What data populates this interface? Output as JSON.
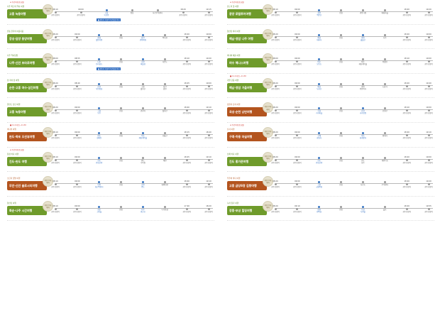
{
  "page": {
    "flag_icon": "pin-icon",
    "accent": "#6f9b2b",
    "accent_alt": "#b3541e",
    "highlight": "#3b78c4"
  },
  "left": [
    {
      "flag": "★ 주간여행(토요일)",
      "subtitle": "나주 최고의 역사 여행",
      "title": "고흥 녹동여행",
      "badge": "여행 주제\n테마",
      "badge_red": false,
      "note": "■ 팸투어 여행객 주간일정 안내",
      "stops": [
        {
          "t": "08:10",
          "n": "광주송정역"
        },
        {
          "t": "09:00",
          "n": "광주송정역"
        },
        {
          "t": "",
          "n": "고흥\n녹동항",
          "hl": true
        },
        {
          "t": "",
          "n": "점심"
        },
        {
          "t": "",
          "n": "나로우주센터"
        },
        {
          "t": "18:20",
          "n": "광주송정역"
        },
        {
          "t": "19:15",
          "n": "광주송정역"
        }
      ]
    },
    {
      "flag": "",
      "subtitle": "전통 한옥의 아름다움",
      "title": "장성·담양 동양여행",
      "badge": "여행 주제\n테마",
      "badge_red": false,
      "note": "",
      "stops": [
        {
          "t": "08:20",
          "n": "광주송정역"
        },
        {
          "t": "09:00",
          "n": "광주송정역"
        },
        {
          "t": "",
          "n": "장성\n필암서원",
          "hl": true
        },
        {
          "t": "",
          "n": "점심"
        },
        {
          "t": "",
          "n": "담양\n관방제림",
          "hl": true
        },
        {
          "t": "",
          "n": "죽녹원"
        },
        {
          "t": "18:20",
          "n": "광주송정역"
        },
        {
          "t": "19:00",
          "n": "광주송정역"
        }
      ]
    },
    {
      "flag": "",
      "subtitle": "나주 역사탐방",
      "title": "나주·신안 보라로여행",
      "badge": "여행 주제\n테마",
      "badge_red": false,
      "note": "■ 팸투어 여행객 주간일정 안내",
      "stops": [
        {
          "t": "08:00",
          "n": "광주송정역"
        },
        {
          "t": "08:55",
          "n": "광주송정역"
        },
        {
          "t": "",
          "n": "나주\n전라남도",
          "hl": true
        },
        {
          "t": "",
          "n": "점심"
        },
        {
          "t": "",
          "n": "신안\n퍼플섬",
          "hl": true
        },
        {
          "t": "",
          "n": "자은도"
        },
        {
          "t": "18:10",
          "n": "광주송정역"
        },
        {
          "t": "19:20",
          "n": "광주송정역"
        }
      ]
    },
    {
      "flag": "",
      "subtitle": "섬 속의 섬 여행",
      "title": "순천·고흥 여수·섬진여행",
      "badge": "여행 주제\n테마",
      "badge_red": false,
      "note": "",
      "stops": [
        {
          "t": "08:20",
          "n": "광주송정역"
        },
        {
          "t": "08:40",
          "n": "광주송정역"
        },
        {
          "t": "",
          "n": "순천\n낙안읍성",
          "hl": true
        },
        {
          "t": "",
          "n": "점심"
        },
        {
          "t": "",
          "n": "고흥\n팔영산"
        },
        {
          "t": "",
          "n": "섬진\n강변"
        },
        {
          "t": "18:25",
          "n": "광주송정역"
        },
        {
          "t": "19:00",
          "n": "광주송정역"
        }
      ]
    },
    {
      "flag": "",
      "subtitle": "한반도 남단 여행",
      "title": "고흥 녹동여행",
      "badge": "여행 주제\n테마",
      "badge_red": false,
      "note": "",
      "stops": [
        {
          "t": "08:20",
          "n": "광주송정역"
        },
        {
          "t": "09:00",
          "n": "광주송정역"
        },
        {
          "t": "",
          "n": "고흥\n우주",
          "hl": true
        },
        {
          "t": "",
          "n": "점심"
        },
        {
          "t": "",
          "n": "관광지"
        },
        {
          "t": "",
          "n": "팔영산"
        },
        {
          "t": "18:40",
          "n": "광주송정역"
        },
        {
          "t": "19:10",
          "n": "광주송정역"
        }
      ]
    },
    {
      "flag": "■ 11.11(토)~11.30",
      "subtitle": "바다의 여행",
      "title": "완도·목포 오션뷰여행",
      "badge": "여행 주제\n테마",
      "badge_red": true,
      "note": "",
      "stops": [
        {
          "t": "08:10",
          "n": "광주송정역"
        },
        {
          "t": "09:00",
          "n": "광주송정역"
        },
        {
          "t": "",
          "n": "완도\n청해진",
          "hl": true
        },
        {
          "t": "",
          "n": "점심"
        },
        {
          "t": "",
          "n": "목포\n해상케이블",
          "hl": true
        },
        {
          "t": "",
          "n": "유달산"
        },
        {
          "t": "18:15",
          "n": "광주송정역"
        },
        {
          "t": "18:40",
          "n": "광주송정역"
        }
      ]
    },
    {
      "flag": "★ 주간여행(토요일)",
      "subtitle": "청정 바다 여행",
      "title": "진도·완도 여행",
      "badge": "여행 주제\n테마",
      "badge_red": false,
      "note": "",
      "stops": [
        {
          "t": "08:10",
          "n": "광주송정역"
        },
        {
          "t": "09:00",
          "n": "광주송정역"
        },
        {
          "t": "",
          "n": "진도\n운림산방",
          "hl": true
        },
        {
          "t": "",
          "n": "점심"
        },
        {
          "t": "",
          "n": "완도\n수목원"
        },
        {
          "t": "",
          "n": "해변"
        },
        {
          "t": "18:25",
          "n": "광주송정역"
        },
        {
          "t": "19:10",
          "n": "광주송정역"
        }
      ]
    },
    {
      "flag": "",
      "subtitle": "소금과 갯벌 여행",
      "title": "무안·신안 슬로시티여행",
      "badge": "여행 주제\n테마",
      "badge_red": true,
      "note": "",
      "stops": [
        {
          "t": "08:10",
          "n": "광주송정역"
        },
        {
          "t": "09:00",
          "n": "광주송정역"
        },
        {
          "t": "",
          "n": "무안\n회산백련지",
          "hl": true
        },
        {
          "t": "",
          "n": "점심"
        },
        {
          "t": "",
          "n": "신안\n증도",
          "hl": true
        },
        {
          "t": "",
          "n": "태평염전"
        },
        {
          "t": "18:40",
          "n": "광주송정역"
        },
        {
          "t": "19:10",
          "n": "광주송정역"
        }
      ]
    },
    {
      "flag": "",
      "subtitle": "영산강 여행",
      "title": "화순·나주 시간여행",
      "badge": "여행 주제\n테마",
      "badge_red": false,
      "note": "",
      "stops": [
        {
          "t": "08:10",
          "n": "광주송정역"
        },
        {
          "t": "09:00",
          "n": "광주송정역"
        },
        {
          "t": "",
          "n": "화순\n고인돌",
          "hl": true
        },
        {
          "t": "",
          "n": "점심"
        },
        {
          "t": "",
          "n": "나주\n영산포",
          "hl": true
        },
        {
          "t": "",
          "n": "나주읍성"
        },
        {
          "t": "17:40",
          "n": "광주송정역"
        },
        {
          "t": "18:20",
          "n": "광주송정역"
        }
      ]
    }
  ],
  "right": [
    {
      "flag": "★ 주간여행(토요일)",
      "subtitle": "남도의 맛 여행",
      "title": "광양 로컬투어여행",
      "badge": "여행 주제\n테마",
      "badge_red": false,
      "note": "",
      "stops": [
        {
          "t": "08:10",
          "n": "광주송정역"
        },
        {
          "t": "09:00",
          "n": "광주송정역"
        },
        {
          "t": "",
          "n": "광양\n백운산",
          "hl": true
        },
        {
          "t": "",
          "n": "점심"
        },
        {
          "t": "",
          "n": "광양시장"
        },
        {
          "t": "",
          "n": "매화마을"
        },
        {
          "t": "18:20",
          "n": "광주송정역"
        },
        {
          "t": "19:20",
          "n": "광주송정역"
        }
      ]
    },
    {
      "flag": "",
      "subtitle": "영산강 따라 여행",
      "title": "해남·영암 나주 여행",
      "badge": "여행 주제\n테마",
      "badge_red": false,
      "note": "",
      "stops": [
        {
          "t": "08:20",
          "n": "광주송정역"
        },
        {
          "t": "09:00",
          "n": "광주송정역"
        },
        {
          "t": "",
          "n": "해남\n대흥사",
          "hl": true
        },
        {
          "t": "",
          "n": "점심"
        },
        {
          "t": "",
          "n": "영암\n월출산",
          "hl": true
        },
        {
          "t": "",
          "n": "나주"
        },
        {
          "t": "18:20",
          "n": "광주송정역"
        },
        {
          "t": "19:00",
          "n": "광주송정역"
        }
      ]
    },
    {
      "flag": "",
      "subtitle": "바다와 예술 여행",
      "title": "여수 해나스여행",
      "badge": "여행 주제\n테마",
      "badge_red": false,
      "note": "",
      "stops": [
        {
          "t": "08:00",
          "n": "광주송정역"
        },
        {
          "t": "09:00",
          "n": "광주송정역"
        },
        {
          "t": "",
          "n": "여수\n오동도",
          "hl": true
        },
        {
          "t": "",
          "n": "점심"
        },
        {
          "t": "",
          "n": "여수\n해상케이블"
        },
        {
          "t": "",
          "n": "향일암"
        },
        {
          "t": "18:10",
          "n": "광주송정역"
        },
        {
          "t": "19:00",
          "n": "광주송정역"
        }
      ]
    },
    {
      "flag": "■ 11.11(토)~11.30",
      "subtitle": "가을 단풍 여행",
      "title": "해남·영암 가을여행",
      "badge": "여행 주제\n테마",
      "badge_red": false,
      "note": "",
      "stops": [
        {
          "t": "08:20",
          "n": "광주송정역"
        },
        {
          "t": "09:00",
          "n": "광주송정역"
        },
        {
          "t": "",
          "n": "해남\n두륜산",
          "hl": true
        },
        {
          "t": "",
          "n": "점심"
        },
        {
          "t": "",
          "n": "영암\n왕인박사"
        },
        {
          "t": "",
          "n": "도갑사"
        },
        {
          "t": "18:20",
          "n": "광주송정역"
        },
        {
          "t": "19:40",
          "n": "광주송정역"
        }
      ]
    },
    {
      "flag": "",
      "subtitle": "정원과 습지 여행",
      "title": "곡성·순천 낭만여행",
      "badge": "여행 주제\n테마",
      "badge_red": true,
      "note": "",
      "stops": [
        {
          "t": "08:20",
          "n": "광주송정역"
        },
        {
          "t": "09:00",
          "n": "광주송정역"
        },
        {
          "t": "",
          "n": "곡성\n기차마을",
          "hl": true
        },
        {
          "t": "",
          "n": "점심"
        },
        {
          "t": "",
          "n": "순천\n국가정원",
          "hl": true
        },
        {
          "t": "",
          "n": "순천만"
        },
        {
          "t": "18:10",
          "n": "광주송정역"
        },
        {
          "t": "19:00",
          "n": "광주송정역"
        }
      ]
    },
    {
      "flag": "★ 주간여행(토요일)",
      "subtitle": "산사 여행",
      "title": "구례·하동 마실여행",
      "badge": "여행 주제\n테마",
      "badge_red": true,
      "note": "",
      "stops": [
        {
          "t": "08:20",
          "n": "광주송정역"
        },
        {
          "t": "09:00",
          "n": "광주송정역"
        },
        {
          "t": "",
          "n": "구례\n화엄사",
          "hl": true
        },
        {
          "t": "",
          "n": "점심"
        },
        {
          "t": "",
          "n": "하동\n화개장터",
          "hl": true
        },
        {
          "t": "",
          "n": "쌍계사"
        },
        {
          "t": "18:20",
          "n": "광주송정역"
        },
        {
          "t": "19:10",
          "n": "광주송정역"
        }
      ]
    },
    {
      "flag": "",
      "subtitle": "남해 바다 여행",
      "title": "진도 홍가문여행",
      "badge": "여행 주제\n테마",
      "badge_red": false,
      "note": "",
      "stops": [
        {
          "t": "08:20",
          "n": "광주송정역"
        },
        {
          "t": "09:00",
          "n": "광주송정역"
        },
        {
          "t": "",
          "n": "진도\n운림산방",
          "hl": true
        },
        {
          "t": "",
          "n": "점심"
        },
        {
          "t": "",
          "n": "진도\n홍주"
        },
        {
          "t": "",
          "n": "세방낙조"
        },
        {
          "t": "18:20",
          "n": "광주송정역"
        },
        {
          "t": "19:00",
          "n": "광주송정역"
        }
      ]
    },
    {
      "flag": "",
      "subtitle": "우주와 바다 여행",
      "title": "고흥 금당8경 김향여행",
      "badge": "여행 주제\n테마",
      "badge_red": true,
      "note": "",
      "stops": [
        {
          "t": "08:20",
          "n": "광주송정역"
        },
        {
          "t": "09:00",
          "n": "광주송정역"
        },
        {
          "t": "",
          "n": "고흥\n금당8경",
          "hl": true
        },
        {
          "t": "",
          "n": "점심"
        },
        {
          "t": "",
          "n": "나로도"
        },
        {
          "t": "",
          "n": "우주센터"
        },
        {
          "t": "18:20",
          "n": "광주송정역"
        },
        {
          "t": "19:20",
          "n": "광주송정역"
        }
      ]
    },
    {
      "flag": "",
      "subtitle": "녹차 향기 여행",
      "title": "장흥·보성 힐링여행",
      "badge": "여행 주제\n테마",
      "badge_red": false,
      "note": "",
      "stops": [
        {
          "t": "08:20",
          "n": "광주송정역"
        },
        {
          "t": "09:10",
          "n": "광주송정역"
        },
        {
          "t": "",
          "n": "장흥\n편백숲",
          "hl": true
        },
        {
          "t": "",
          "n": "점심"
        },
        {
          "t": "",
          "n": "보성\n녹차밭",
          "hl": true
        },
        {
          "t": "",
          "n": "율포"
        },
        {
          "t": "18:20",
          "n": "광주송정역"
        },
        {
          "t": "19:55",
          "n": "광주송정역"
        }
      ]
    }
  ]
}
